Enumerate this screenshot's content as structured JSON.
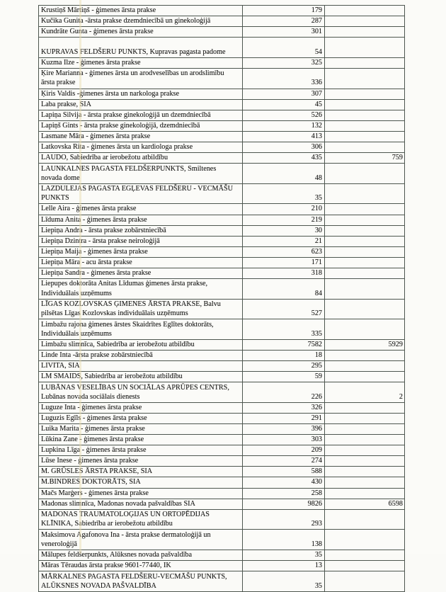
{
  "document": {
    "kind": "scanned-registry-table-page",
    "language": "Latvian",
    "columns": [
      "practice_name",
      "count_primary",
      "count_secondary"
    ]
  },
  "colors": {
    "paper": "#fbfbf8",
    "border": "#4d564f",
    "ink": "#171716",
    "fold_line": "#e9dbac"
  },
  "table": {
    "rows": [
      {
        "name": "Krustiņš Mārtiņš - ģimenes ārsta prakse",
        "v1": "179",
        "v2": ""
      },
      {
        "name": "Kučika Gunita -ārsta prakse dzemdniecībā un ginekoloģijā",
        "v1": "287",
        "v2": ""
      },
      {
        "name": "Kundrāte Gunta - ģimenes ārsta prakse",
        "v1": "301",
        "v2": ""
      },
      {
        "name": "KUPRAVAS FELDŠERU PUNKTS, Kupravas pagasta padome",
        "v1": "54",
        "v2": "",
        "tall": true
      },
      {
        "name": "Kuzma Ilze - ģimenes ārsta prakse",
        "v1": "325",
        "v2": ""
      },
      {
        "name": "Ķire Marianna - ģimenes ārsta un arodveselības un arodslimību\nārsta prakse",
        "v1": "336",
        "v2": ""
      },
      {
        "name": "Ķiris Valdis -ģimenes ārsta un narkologa prakse",
        "v1": "307",
        "v2": ""
      },
      {
        "name": "Laba prakse, SIA",
        "v1": "45",
        "v2": ""
      },
      {
        "name": "Lapiņa Silvija - ārsta prakse ginekoloģijā un dzemdniecībā",
        "v1": "526",
        "v2": ""
      },
      {
        "name": "Lapiņš Gints - ārsta prakse ginekoloģijā, dzemdniecībā",
        "v1": "132",
        "v2": ""
      },
      {
        "name": "Lasmane Māra - ģimenes ārsta prakse",
        "v1": "413",
        "v2": ""
      },
      {
        "name": "Latkovska Rita - ģimenes ārsta un kardiologa prakse",
        "v1": "306",
        "v2": ""
      },
      {
        "name": "LAUDO, Sabiedrība ar ierobežotu atbildību",
        "v1": "435",
        "v2": "759"
      },
      {
        "name": "LAUNKALNES PAGASTA FELDŠERPUNKTS, Smiltenes\nnovada dome",
        "v1": "48",
        "v2": ""
      },
      {
        "name": "LAZDULEJAS PAGASTA EGĻEVAS FELDŠERU - VECMĀŠU\nPUNKTS",
        "v1": "35",
        "v2": ""
      },
      {
        "name": "Lelle Aira - ģimenes ārsta prakse",
        "v1": "210",
        "v2": ""
      },
      {
        "name": "Līduma Anita - ģimenes ārsta prakse",
        "v1": "219",
        "v2": ""
      },
      {
        "name": "Liepiņa Andra - ārsta prakse zobārstniecībā",
        "v1": "30",
        "v2": ""
      },
      {
        "name": "Liepiņa Dzintra - ārsta prakse neiroloģijā",
        "v1": "21",
        "v2": ""
      },
      {
        "name": "Liepiņa Maija - ģimenes ārsta prakse",
        "v1": "623",
        "v2": ""
      },
      {
        "name": "Liepiņa Māra - acu ārsta prakse",
        "v1": "171",
        "v2": ""
      },
      {
        "name": "Liepiņa Sandra - ģimenes ārsta prakse",
        "v1": "318",
        "v2": ""
      },
      {
        "name": "Liepupes doktorāta Anitas Līdumas ģimenes ārsta prakse,\nIndividuālais uzņēmums",
        "v1": "84",
        "v2": ""
      },
      {
        "name": "LĪGAS KOZLOVSKAS ĢIMENES ĀRSTA PRAKSE, Balvu\npilsētas Līgas Kozlovskas individuālais uzņēmums",
        "v1": "527",
        "v2": ""
      },
      {
        "name": "Limbažu rajona ģimenes ārstes Skaidrītes Eglītes doktorāts,\nIndividuālais uzņēmums",
        "v1": "335",
        "v2": ""
      },
      {
        "name": "Limbažu slimnīca, Sabiedrība ar ierobežotu atbildību",
        "v1": "7582",
        "v2": "5929"
      },
      {
        "name": "Linde Inta -ārsta prakse zobārstniecībā",
        "v1": "18",
        "v2": ""
      },
      {
        "name": "LIVITA, SIA",
        "v1": "295",
        "v2": ""
      },
      {
        "name": "LM SMAIDS, Sabiedrība ar ierobežotu atbildību",
        "v1": "59",
        "v2": ""
      },
      {
        "name": "LUBĀNAS VESELĪBAS UN SOCIĀLAS APRŪPES CENTRS,\nLubānas novada sociālais dienests",
        "v1": "226",
        "v2": "2"
      },
      {
        "name": "Luguze Inta - ģimenes ārsta prakse",
        "v1": "326",
        "v2": ""
      },
      {
        "name": "Luguzis Egīls - ģimenes ārsta prakse",
        "v1": "291",
        "v2": ""
      },
      {
        "name": "Luika Marita - ģimenes ārsta prakse",
        "v1": "396",
        "v2": ""
      },
      {
        "name": "Lūkina Zane - ģimenes ārsta prakse",
        "v1": "303",
        "v2": ""
      },
      {
        "name": "Lupkina Līga - ģimenes ārsta prakse",
        "v1": "209",
        "v2": ""
      },
      {
        "name": "Lūse Inese - ģimenes ārsta prakse",
        "v1": "274",
        "v2": ""
      },
      {
        "name": "M. GRŪSLES ĀRSTA PRAKSE, SIA",
        "v1": "588",
        "v2": ""
      },
      {
        "name": "M.BINDRES DOKTORĀTS, SIA",
        "v1": "430",
        "v2": ""
      },
      {
        "name": "Mačs Marģers - ģimenes ārsta prakse",
        "v1": "258",
        "v2": ""
      },
      {
        "name": "Madonas slimnīca, Madonas novada pašvaldības SIA",
        "v1": "9826",
        "v2": "6598"
      },
      {
        "name": "MADONAS TRAUMATOLOĢIJAS UN ORTOPĒDIJAS\nKLĪNIKA, Sabiedrība ar ierobežotu atbildību",
        "v1": "293",
        "v2": ""
      },
      {
        "name": "Maksimova Agafonova Ina - ārsta prakse dermatoloģijā un\nveneroloģijā",
        "v1": "138",
        "v2": ""
      },
      {
        "name": "Mālupes feldšerpunkts, Alūksnes novada pašvaldība",
        "v1": "35",
        "v2": ""
      },
      {
        "name": "Māras Tēraudas ārsta prakse 9601-77440, IK",
        "v1": "13",
        "v2": ""
      },
      {
        "name": "MĀRKALNES PAGASTA FELDŠERU-VECMĀŠU PUNKTS,\nALŪKSNES NOVADA PAŠVALDĪBA",
        "v1": "35",
        "v2": ""
      }
    ]
  }
}
